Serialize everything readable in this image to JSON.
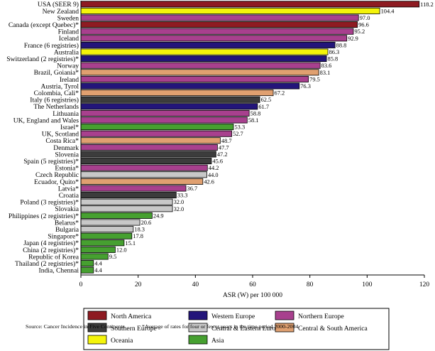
{
  "colors": {
    "North America": "#8e1b22",
    "Western Europe": "#23157a",
    "Northern Europe": "#a8408e",
    "Southern Europe": "#3c3c3c",
    "Central & Eastern Europe": "#c8c8c8",
    "Central & South America": "#e0a070",
    "Oceania": "#f4f40a",
    "Asia": "#46a030"
  },
  "chart_data": {
    "type": "bar",
    "orientation": "horizontal",
    "xlabel": "ASR (W) per 100 000",
    "xlim": [
      0,
      120
    ],
    "xticks": [
      0,
      20,
      40,
      60,
      80,
      100,
      120
    ],
    "grid": false,
    "legend_placement": "bottom",
    "categories": [
      "USA (SEER 9)",
      "New Zealand",
      "Sweden",
      "Canada (except Quebec)*",
      "Finland",
      "Iceland",
      "France (6 registries)",
      "Australia",
      "Switzerland (2 registries)*",
      "Norway",
      "Brazil, Goiania*",
      "Ireland",
      "Austria, Tyrol",
      "Colombia, Cali*",
      "Italy (6 registries)",
      "The Netherlands",
      "Lithuania",
      "UK, England and Wales",
      "Israel*",
      "UK, Scotland",
      "Costa Rica*",
      "Denmark",
      "Slovenia",
      "Spain (5 registries)*",
      "Estonia*",
      "Czech Republic",
      "Ecuador, Quito*",
      "Latvia*",
      "Croatia",
      "Poland (3 registries)*",
      "Slovakia",
      "Philippines (2 registries)*",
      "Belarus*",
      "Bulgaria",
      "Singapore*",
      "Japan (4 registries)*",
      "China (2 registries)*",
      "Republic of Korea",
      "Thailand (2 registries)*",
      "India, Chennai"
    ],
    "values": [
      118.2,
      104.4,
      97.0,
      96.6,
      95.2,
      92.9,
      88.8,
      86.3,
      85.8,
      83.6,
      83.1,
      79.5,
      76.3,
      67.2,
      62.5,
      61.7,
      58.8,
      58.1,
      53.3,
      52.7,
      48.7,
      47.7,
      47.2,
      45.6,
      44.2,
      44.0,
      42.6,
      36.7,
      33.3,
      32.0,
      32.0,
      24.9,
      20.6,
      18.3,
      17.8,
      15.1,
      12.0,
      9.5,
      4.4,
      4.4
    ],
    "value_labels": [
      "118.2",
      "104.4",
      "97.0",
      "96.6",
      "95.2",
      "92.9",
      "88.8",
      "86.3",
      "85.8",
      "83.6",
      "83.1",
      "79.5",
      "76.3",
      "67.2",
      "62.5",
      "61.7",
      "58.8",
      "58.1",
      "53.3",
      "52.7",
      "48.7",
      "47.7",
      "47.2",
      "45.6",
      "44.2",
      "44.0",
      "42.6",
      "36.7",
      "33.3",
      "32.0",
      "32.0",
      "24.9",
      "20.6",
      "18.3",
      "17.8",
      "15.1",
      "12.0",
      "9.5",
      "4.4",
      "4.4"
    ],
    "regions": [
      "North America",
      "Oceania",
      "Northern Europe",
      "North America",
      "Northern Europe",
      "Northern Europe",
      "Western Europe",
      "Oceania",
      "Western Europe",
      "Northern Europe",
      "Central & South America",
      "Northern Europe",
      "Western Europe",
      "Central & South America",
      "Southern Europe",
      "Western Europe",
      "Northern Europe",
      "Northern Europe",
      "Asia",
      "Northern Europe",
      "Central & South America",
      "Northern Europe",
      "Southern Europe",
      "Southern Europe",
      "Northern Europe",
      "Central & Eastern Europe",
      "Central & South America",
      "Northern Europe",
      "Southern Europe",
      "Central & Eastern Europe",
      "Central & Eastern Europe",
      "Asia",
      "Central & Eastern Europe",
      "Central & Eastern Europe",
      "Asia",
      "Asia",
      "Asia",
      "Asia",
      "Asia",
      "Asia"
    ],
    "legend": [
      "North America",
      "Western Europe",
      "Northern Europe",
      "Southern Europe",
      "Central & Eastern Europe",
      "Central & South America",
      "Oceania",
      "Asia"
    ]
  },
  "footer": {
    "source": "Source: Cancer Incidence in Five Continents",
    "note": "*Average of rates for four or fewer years in the time period 2000-2004"
  }
}
